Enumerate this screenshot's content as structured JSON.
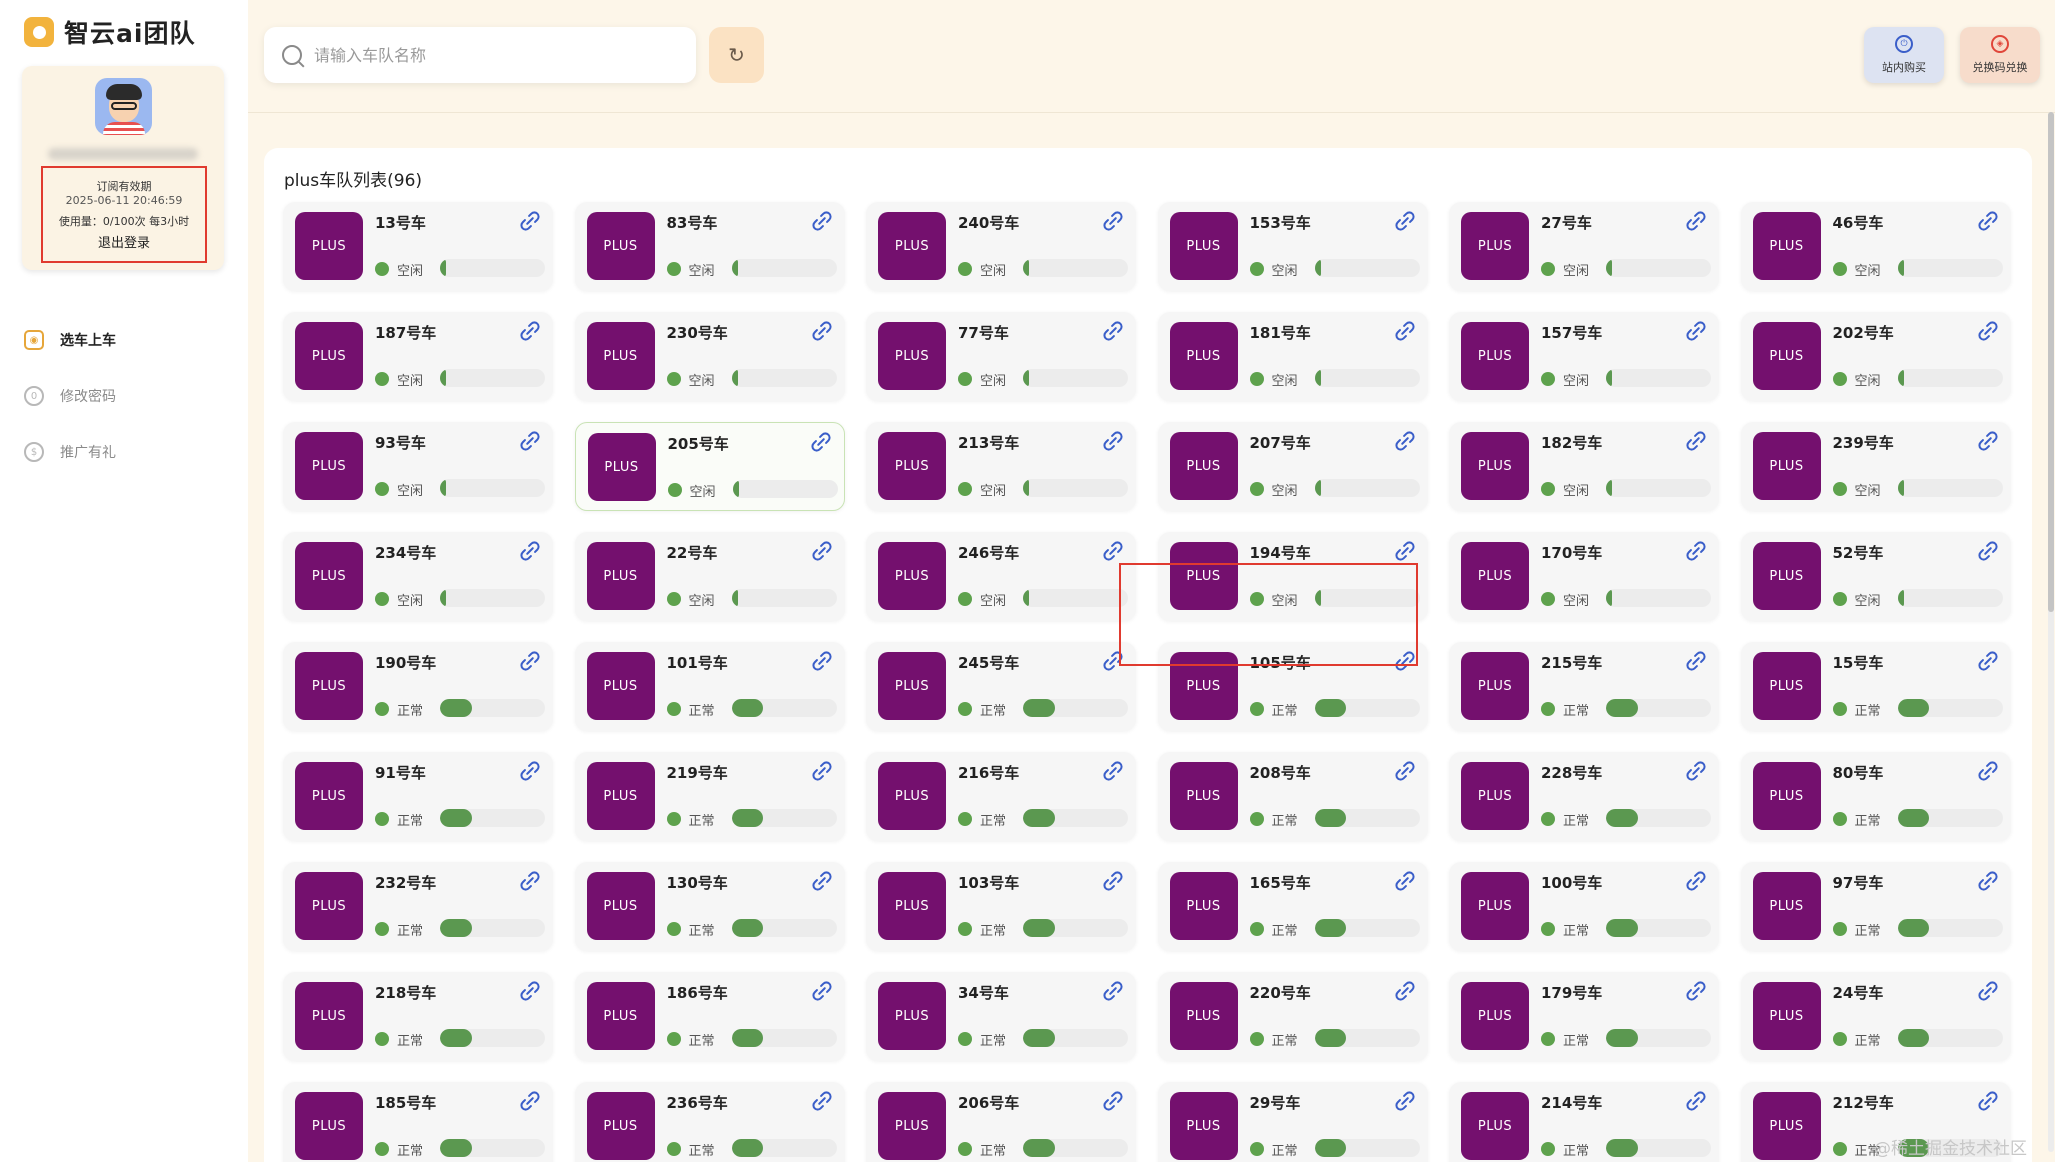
{
  "app": {
    "brand": "智云ai团队"
  },
  "profile": {
    "subscription_title": "订阅有效期",
    "subscription_date": "2025-06-11 20:46:59",
    "usage": "使用量：0/100次 每3小时",
    "logout_label": "退出登录"
  },
  "nav": {
    "items": [
      {
        "label": "选车上车",
        "active": true
      },
      {
        "label": "修改密码",
        "active": false
      },
      {
        "label": "推广有礼",
        "active": false
      }
    ]
  },
  "search": {
    "placeholder": "请输入车队名称",
    "value": ""
  },
  "top_buttons": {
    "buy_label": "站内购买",
    "redeem_label": "兑换码兑换"
  },
  "panel": {
    "title": "plus车队列表(96)"
  },
  "badge_label": "PLUS",
  "colors": {
    "badge": "#74106e",
    "status_ok": "#5ea24d",
    "highlight": "#e03a2f",
    "accent": "#f2b33d"
  },
  "cars": [
    {
      "name": "13号车",
      "status": "空闲",
      "load": 0.06
    },
    {
      "name": "83号车",
      "status": "空闲",
      "load": 0.06
    },
    {
      "name": "240号车",
      "status": "空闲",
      "load": 0.06
    },
    {
      "name": "153号车",
      "status": "空闲",
      "load": 0.06
    },
    {
      "name": "27号车",
      "status": "空闲",
      "load": 0.06
    },
    {
      "name": "46号车",
      "status": "空闲",
      "load": 0.06
    },
    {
      "name": "187号车",
      "status": "空闲",
      "load": 0.06
    },
    {
      "name": "230号车",
      "status": "空闲",
      "load": 0.06
    },
    {
      "name": "77号车",
      "status": "空闲",
      "load": 0.06
    },
    {
      "name": "181号车",
      "status": "空闲",
      "load": 0.06
    },
    {
      "name": "157号车",
      "status": "空闲",
      "load": 0.06
    },
    {
      "name": "202号车",
      "status": "空闲",
      "load": 0.06
    },
    {
      "name": "93号车",
      "status": "空闲",
      "load": 0.06
    },
    {
      "name": "205号车",
      "status": "空闲",
      "load": 0.06
    },
    {
      "name": "213号车",
      "status": "空闲",
      "load": 0.06
    },
    {
      "name": "207号车",
      "status": "空闲",
      "load": 0.06
    },
    {
      "name": "182号车",
      "status": "空闲",
      "load": 0.06
    },
    {
      "name": "239号车",
      "status": "空闲",
      "load": 0.06
    },
    {
      "name": "234号车",
      "status": "空闲",
      "load": 0.06
    },
    {
      "name": "22号车",
      "status": "空闲",
      "load": 0.06
    },
    {
      "name": "246号车",
      "status": "空闲",
      "load": 0.06
    },
    {
      "name": "194号车",
      "status": "空闲",
      "load": 0.06
    },
    {
      "name": "170号车",
      "status": "空闲",
      "load": 0.06
    },
    {
      "name": "52号车",
      "status": "空闲",
      "load": 0.06
    },
    {
      "name": "190号车",
      "status": "正常",
      "load": 0.3
    },
    {
      "name": "101号车",
      "status": "正常",
      "load": 0.3
    },
    {
      "name": "245号车",
      "status": "正常",
      "load": 0.3
    },
    {
      "name": "105号车",
      "status": "正常",
      "load": 0.3
    },
    {
      "name": "215号车",
      "status": "正常",
      "load": 0.3
    },
    {
      "name": "15号车",
      "status": "正常",
      "load": 0.3
    },
    {
      "name": "91号车",
      "status": "正常",
      "load": 0.3
    },
    {
      "name": "219号车",
      "status": "正常",
      "load": 0.3
    },
    {
      "name": "216号车",
      "status": "正常",
      "load": 0.3
    },
    {
      "name": "208号车",
      "status": "正常",
      "load": 0.3
    },
    {
      "name": "228号车",
      "status": "正常",
      "load": 0.3
    },
    {
      "name": "80号车",
      "status": "正常",
      "load": 0.3
    },
    {
      "name": "232号车",
      "status": "正常",
      "load": 0.3
    },
    {
      "name": "130号车",
      "status": "正常",
      "load": 0.3
    },
    {
      "name": "103号车",
      "status": "正常",
      "load": 0.3
    },
    {
      "name": "165号车",
      "status": "正常",
      "load": 0.3
    },
    {
      "name": "100号车",
      "status": "正常",
      "load": 0.3
    },
    {
      "name": "97号车",
      "status": "正常",
      "load": 0.3
    },
    {
      "name": "218号车",
      "status": "正常",
      "load": 0.3
    },
    {
      "name": "186号车",
      "status": "正常",
      "load": 0.3
    },
    {
      "name": "34号车",
      "status": "正常",
      "load": 0.3
    },
    {
      "name": "220号车",
      "status": "正常",
      "load": 0.3
    },
    {
      "name": "179号车",
      "status": "正常",
      "load": 0.3
    },
    {
      "name": "24号车",
      "status": "正常",
      "load": 0.3
    },
    {
      "name": "185号车",
      "status": "正常",
      "load": 0.3
    },
    {
      "name": "236号车",
      "status": "正常",
      "load": 0.3
    },
    {
      "name": "206号车",
      "status": "正常",
      "load": 0.3
    },
    {
      "name": "29号车",
      "status": "正常",
      "load": 0.3
    },
    {
      "name": "214号车",
      "status": "正常",
      "load": 0.3
    },
    {
      "name": "212号车",
      "status": "正常",
      "load": 0.3
    }
  ],
  "watermark": "@稀土掘金技术社区"
}
